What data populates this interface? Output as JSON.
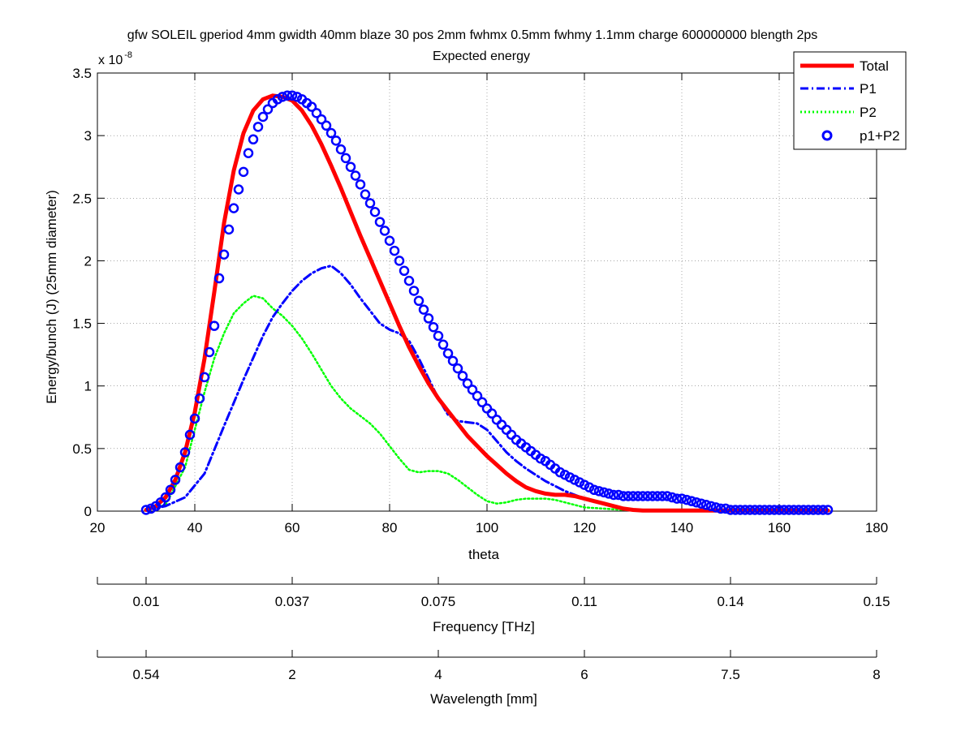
{
  "chart_data": {
    "type": "line",
    "title": "gfw SOLEIL gperiod 4mm gwidth 40mm blaze 30 pos 2mm fwhmx 0.5mm fwhmy 1.1mm charge 600000000 blength 2ps",
    "subtitle": "Expected energy",
    "xlabel": "theta",
    "ylabel": "Energy/bunch (J)  (25mm diameter)",
    "y_exponent_label": "x 10",
    "y_exponent": "-8",
    "xlim": [
      20,
      180
    ],
    "ylim": [
      0,
      3.5
    ],
    "grid": true,
    "legend_position": "top-right",
    "x_ticks": [
      20,
      40,
      60,
      80,
      100,
      120,
      140,
      160,
      180
    ],
    "x_tick_labels": [
      "20",
      "40",
      "60",
      "80",
      "100",
      "120",
      "140",
      "160",
      "180"
    ],
    "y_ticks": [
      0,
      0.5,
      1,
      1.5,
      2,
      2.5,
      3,
      3.5
    ],
    "y_tick_labels": [
      "0",
      "0.5",
      "1",
      "1.5",
      "2",
      "2.5",
      "3",
      "3.5"
    ],
    "secondary_axes": [
      {
        "label": "Frequency [THz]",
        "tick_positions_theta": [
          20,
          30,
          60,
          90,
          120,
          150,
          180
        ],
        "tick_labels": [
          "",
          "0.01",
          "0.037",
          "0.075",
          "0.11",
          "0.14",
          "0.15"
        ]
      },
      {
        "label": "Wavelength [mm]",
        "tick_positions_theta": [
          20,
          30,
          60,
          90,
          120,
          150,
          180
        ],
        "tick_labels": [
          "",
          "0.54",
          "2",
          "4",
          "6",
          "7.5",
          "8"
        ]
      }
    ],
    "series": [
      {
        "name": "Total",
        "style": "solid",
        "color": "#ff0000",
        "x": [
          30,
          32,
          34,
          36,
          38,
          40,
          42,
          44,
          46,
          48,
          50,
          52,
          54,
          56,
          58,
          60,
          62,
          64,
          66,
          68,
          70,
          72,
          74,
          76,
          78,
          80,
          82,
          84,
          86,
          88,
          90,
          92,
          94,
          96,
          98,
          100,
          102,
          104,
          106,
          108,
          110,
          112,
          114,
          116,
          118,
          120,
          122,
          124,
          126,
          128,
          130,
          132,
          134,
          136,
          138,
          140,
          142,
          144,
          146,
          148,
          150,
          152,
          154,
          156,
          158,
          160,
          162,
          164,
          166,
          168,
          170
        ],
        "y": [
          0.01,
          0.04,
          0.11,
          0.25,
          0.47,
          0.79,
          1.22,
          1.75,
          2.3,
          2.72,
          3.02,
          3.2,
          3.29,
          3.32,
          3.31,
          3.28,
          3.2,
          3.08,
          2.93,
          2.76,
          2.58,
          2.39,
          2.2,
          2.02,
          1.84,
          1.66,
          1.48,
          1.31,
          1.16,
          1.02,
          0.9,
          0.8,
          0.7,
          0.6,
          0.52,
          0.44,
          0.37,
          0.3,
          0.24,
          0.19,
          0.16,
          0.14,
          0.13,
          0.13,
          0.12,
          0.1,
          0.08,
          0.06,
          0.04,
          0.02,
          0.01,
          0.005,
          0.005,
          0.005,
          0.005,
          0.005,
          0.005,
          0.005,
          0.005,
          0.005,
          0.005,
          0.005,
          0.005,
          0.005,
          0.005,
          0.005,
          0.005,
          0.005,
          0.005,
          0.005,
          0.005
        ]
      },
      {
        "name": "P1",
        "style": "dashdot",
        "color": "#0000ff",
        "x": [
          30,
          34,
          38,
          42,
          46,
          50,
          54,
          56,
          58,
          60,
          62,
          64,
          66,
          68,
          70,
          72,
          74,
          76,
          78,
          80,
          82,
          84,
          86,
          88,
          90,
          92,
          94,
          96,
          98,
          100,
          102,
          104,
          106,
          108,
          110,
          112,
          114,
          116,
          118,
          120
        ],
        "y": [
          0.01,
          0.04,
          0.11,
          0.3,
          0.68,
          1.05,
          1.4,
          1.55,
          1.66,
          1.76,
          1.84,
          1.9,
          1.94,
          1.96,
          1.9,
          1.81,
          1.7,
          1.6,
          1.5,
          1.45,
          1.42,
          1.36,
          1.22,
          1.06,
          0.9,
          0.77,
          0.72,
          0.71,
          0.7,
          0.65,
          0.56,
          0.47,
          0.4,
          0.34,
          0.29,
          0.24,
          0.2,
          0.16,
          0.13,
          0.1
        ]
      },
      {
        "name": "P2",
        "style": "dotted",
        "color": "#00ff00",
        "x": [
          30,
          34,
          38,
          42,
          44,
          46,
          48,
          50,
          52,
          54,
          56,
          58,
          60,
          62,
          64,
          66,
          68,
          70,
          72,
          74,
          76,
          78,
          80,
          82,
          84,
          86,
          88,
          90,
          92,
          94,
          96,
          98,
          100,
          102,
          104,
          106,
          108,
          110,
          112,
          114,
          116,
          118,
          120,
          124,
          128,
          132,
          136,
          140,
          144,
          148,
          150
        ],
        "y": [
          0.01,
          0.05,
          0.35,
          0.95,
          1.22,
          1.42,
          1.58,
          1.66,
          1.72,
          1.7,
          1.62,
          1.56,
          1.48,
          1.38,
          1.26,
          1.13,
          1.0,
          0.9,
          0.82,
          0.76,
          0.7,
          0.62,
          0.52,
          0.42,
          0.33,
          0.31,
          0.32,
          0.32,
          0.3,
          0.25,
          0.19,
          0.13,
          0.08,
          0.06,
          0.07,
          0.09,
          0.1,
          0.1,
          0.1,
          0.09,
          0.07,
          0.05,
          0.03,
          0.02,
          0.01,
          0.01,
          0.01,
          0.01,
          0.01,
          0.005,
          0.0
        ]
      },
      {
        "name": "p1+P2",
        "style": "markers",
        "color": "#0000ff",
        "x": [
          30,
          31,
          32,
          33,
          34,
          35,
          36,
          37,
          38,
          39,
          40,
          41,
          42,
          43,
          44,
          45,
          46,
          47,
          48,
          49,
          50,
          51,
          52,
          53,
          54,
          55,
          56,
          57,
          58,
          59,
          60,
          61,
          62,
          63,
          64,
          65,
          66,
          67,
          68,
          69,
          70,
          71,
          72,
          73,
          74,
          75,
          76,
          77,
          78,
          79,
          80,
          81,
          82,
          83,
          84,
          85,
          86,
          87,
          88,
          89,
          90,
          91,
          92,
          93,
          94,
          95,
          96,
          97,
          98,
          99,
          100,
          101,
          102,
          103,
          104,
          105,
          106,
          107,
          108,
          109,
          110,
          111,
          112,
          113,
          114,
          115,
          116,
          117,
          118,
          119,
          120,
          121,
          122,
          123,
          124,
          125,
          126,
          127,
          128,
          129,
          130,
          131,
          132,
          133,
          134,
          135,
          136,
          137,
          138,
          139,
          140,
          141,
          142,
          143,
          144,
          145,
          146,
          147,
          148,
          149,
          150,
          151,
          152,
          153,
          154,
          155,
          156,
          157,
          158,
          159,
          160,
          161,
          162,
          163,
          164,
          165,
          166,
          167,
          168,
          169,
          170
        ],
        "y": [
          0.01,
          0.02,
          0.04,
          0.07,
          0.11,
          0.17,
          0.25,
          0.35,
          0.47,
          0.61,
          0.74,
          0.9,
          1.07,
          1.27,
          1.48,
          1.86,
          2.05,
          2.25,
          2.42,
          2.57,
          2.71,
          2.86,
          2.97,
          3.07,
          3.15,
          3.21,
          3.26,
          3.29,
          3.31,
          3.32,
          3.32,
          3.31,
          3.29,
          3.26,
          3.23,
          3.18,
          3.13,
          3.08,
          3.02,
          2.96,
          2.89,
          2.82,
          2.75,
          2.68,
          2.61,
          2.53,
          2.46,
          2.39,
          2.31,
          2.24,
          2.16,
          2.08,
          2.0,
          1.92,
          1.84,
          1.76,
          1.68,
          1.61,
          1.54,
          1.47,
          1.4,
          1.33,
          1.26,
          1.2,
          1.14,
          1.08,
          1.02,
          0.97,
          0.92,
          0.87,
          0.82,
          0.78,
          0.73,
          0.69,
          0.65,
          0.61,
          0.57,
          0.54,
          0.51,
          0.48,
          0.45,
          0.42,
          0.4,
          0.37,
          0.34,
          0.31,
          0.29,
          0.27,
          0.25,
          0.23,
          0.21,
          0.19,
          0.17,
          0.16,
          0.15,
          0.14,
          0.13,
          0.13,
          0.12,
          0.12,
          0.12,
          0.12,
          0.12,
          0.12,
          0.12,
          0.12,
          0.12,
          0.12,
          0.11,
          0.1,
          0.1,
          0.09,
          0.08,
          0.07,
          0.06,
          0.05,
          0.04,
          0.03,
          0.02,
          0.02,
          0.01,
          0.01,
          0.01,
          0.01,
          0.01,
          0.01,
          0.01,
          0.01,
          0.01,
          0.01,
          0.01,
          0.01,
          0.01,
          0.01,
          0.01,
          0.01,
          0.01,
          0.01,
          0.01,
          0.01,
          0.01
        ]
      }
    ]
  }
}
